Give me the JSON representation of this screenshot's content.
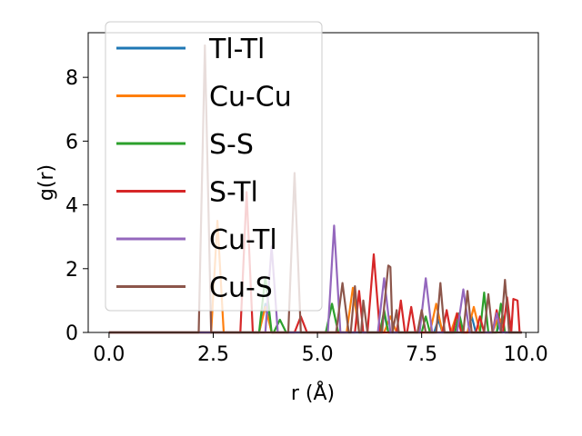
{
  "chart_data": {
    "type": "line",
    "xlabel": "r (Å)",
    "ylabel": "g(r)",
    "xlim": [
      -0.5,
      10.3
    ],
    "ylim": [
      0,
      9.4
    ],
    "xticks": [
      "0.0",
      "2.5",
      "5.0",
      "7.5",
      "10.0"
    ],
    "yticks": [
      "0",
      "2",
      "4",
      "6",
      "8"
    ],
    "legend_position": "top-left",
    "series": [
      {
        "name": "Tl-Tl",
        "color": "#1f77b4",
        "x": [
          0,
          3.6,
          3.75,
          3.9,
          4.2,
          6.5,
          6.6,
          6.7,
          7.0,
          7.8,
          7.9,
          8.0,
          8.6,
          8.7,
          8.8,
          9.3,
          9.4,
          9.5,
          9.9
        ],
        "y": [
          0,
          0,
          0.9,
          0,
          0,
          0,
          0.6,
          0,
          0,
          0,
          0.4,
          0,
          0,
          0.5,
          0,
          0,
          0.4,
          0,
          0
        ]
      },
      {
        "name": "Cu-Cu",
        "color": "#ff7f0e",
        "x": [
          0,
          2.45,
          2.6,
          2.75,
          3.6,
          3.75,
          3.9,
          5.7,
          5.85,
          6.0,
          6.6,
          6.75,
          6.9,
          7.7,
          7.85,
          8.0,
          8.2,
          8.35,
          8.5,
          8.6,
          8.75,
          8.9,
          9.2,
          9.35,
          9.5,
          9.9
        ],
        "y": [
          0,
          0,
          3.5,
          0,
          0,
          0.8,
          0,
          0,
          1.4,
          0,
          0,
          0.5,
          0,
          0,
          0.9,
          0,
          0,
          0.6,
          0,
          0,
          0.8,
          0,
          0,
          0.5,
          0,
          0
        ]
      },
      {
        "name": "S-S",
        "color": "#2ca02c",
        "x": [
          0,
          3.6,
          3.75,
          3.9,
          3.95,
          4.1,
          4.25,
          5.2,
          5.35,
          5.5,
          6.5,
          6.6,
          6.7,
          7.5,
          7.6,
          7.7,
          8.3,
          8.4,
          8.5,
          8.9,
          9.0,
          9.1,
          9.3,
          9.4,
          9.5,
          9.6,
          9.9
        ],
        "y": [
          0,
          0,
          1.75,
          0,
          0,
          0.4,
          0,
          0,
          0.9,
          0,
          0,
          0.7,
          0,
          0,
          0.5,
          0,
          0,
          0.6,
          0,
          0,
          1.25,
          0,
          0,
          0.9,
          0,
          0,
          0
        ]
      },
      {
        "name": "S-Tl",
        "color": "#d62728",
        "x": [
          0,
          3.15,
          3.3,
          3.45,
          4.45,
          4.6,
          4.75,
          5.9,
          6.0,
          6.1,
          6.2,
          6.35,
          6.5,
          6.9,
          7.0,
          7.1,
          7.15,
          7.25,
          7.35,
          8.0,
          8.1,
          8.2,
          8.25,
          8.35,
          8.45,
          8.8,
          8.9,
          9.0,
          9.2,
          9.3,
          9.4,
          9.45,
          9.55,
          9.65,
          9.7,
          9.8,
          9.85,
          9.9
        ],
        "y": [
          0,
          0,
          4.4,
          0,
          0,
          0.5,
          0,
          0,
          1.3,
          0,
          0,
          2.45,
          0,
          0,
          1.0,
          0,
          0,
          0.8,
          0,
          0,
          0.7,
          0,
          0,
          0.6,
          0,
          0,
          0.5,
          0,
          0,
          0.7,
          0,
          0,
          1.1,
          0,
          1.05,
          1.0,
          0,
          0
        ]
      },
      {
        "name": "Cu-Tl",
        "color": "#9467bd",
        "x": [
          0,
          3.75,
          3.9,
          4.05,
          5.25,
          5.4,
          5.55,
          6.45,
          6.6,
          6.75,
          7.45,
          7.6,
          7.75,
          8.35,
          8.5,
          8.65,
          9.2,
          9.3,
          9.4,
          9.9
        ],
        "y": [
          0,
          0,
          2.7,
          0,
          0,
          3.35,
          0,
          0,
          1.7,
          0,
          0,
          1.7,
          0,
          0,
          1.35,
          0,
          0,
          0.6,
          0,
          0
        ]
      },
      {
        "name": "Cu-S",
        "color": "#8c564b",
        "x": [
          0,
          2.15,
          2.3,
          2.45,
          4.3,
          4.45,
          4.6,
          5.45,
          5.6,
          5.75,
          5.8,
          5.9,
          6.0,
          6.05,
          6.1,
          6.2,
          6.55,
          6.6,
          6.7,
          6.75,
          6.8,
          6.9,
          6.95,
          7.4,
          7.5,
          7.6,
          7.85,
          7.95,
          8.05,
          8.5,
          8.6,
          8.7,
          9.0,
          9.1,
          9.2,
          9.4,
          9.5,
          9.6,
          9.7,
          9.9
        ],
        "y": [
          0,
          0,
          9.0,
          0,
          0,
          5.0,
          0,
          0,
          1.55,
          0,
          0,
          1.45,
          0,
          0,
          1.0,
          0,
          0,
          0.8,
          2.1,
          2.05,
          0,
          0.7,
          0,
          0,
          0.7,
          0,
          0,
          1.55,
          0,
          0,
          1.3,
          0,
          0,
          1.2,
          0,
          0,
          1.65,
          0,
          0,
          0
        ]
      }
    ]
  }
}
